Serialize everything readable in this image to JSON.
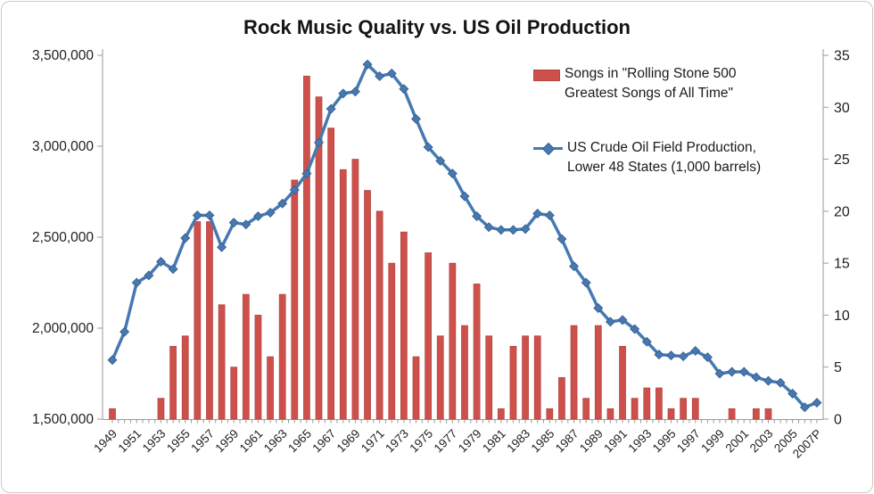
{
  "title": "Rock Music Quality vs. US Oil Production",
  "legend": {
    "items": [
      {
        "line1": "Songs in \"Rolling Stone 500",
        "line2": "Greatest Songs of All Time\"",
        "swatch": "bar-swatch"
      },
      {
        "line1": "US Crude Oil Field Production,",
        "line2": "Lower 48 States (1,000 barrels)",
        "swatch": "line-diamond-swatch"
      }
    ]
  },
  "colors": {
    "bar_fill": "#cd504b",
    "bar_edge": "#b24743",
    "line": "#4679b2",
    "marker_fill": "#4679b2",
    "marker_edge": "#3a6292",
    "axis_line": "#9a9a9a",
    "tick": "#9a9a9a",
    "label_text": "#1f1f1f"
  },
  "chart_data": {
    "type": "combo-bar-line",
    "title": "Rock Music Quality vs. US Oil Production",
    "grid": false,
    "legend_position": "top-right-inside",
    "x": [
      1949,
      1950,
      1951,
      1952,
      1953,
      1954,
      1955,
      1956,
      1957,
      1958,
      1959,
      1960,
      1961,
      1962,
      1963,
      1964,
      1965,
      1966,
      1967,
      1968,
      1969,
      1970,
      1971,
      1972,
      1973,
      1974,
      1975,
      1976,
      1977,
      1978,
      1979,
      1980,
      1981,
      1982,
      1983,
      1984,
      1985,
      1986,
      1987,
      1988,
      1989,
      1990,
      1991,
      1992,
      1993,
      1994,
      1995,
      1996,
      1997,
      1998,
      1999,
      2000,
      2001,
      2002,
      2003,
      2004,
      2005,
      2006,
      2007
    ],
    "x_tick_labels": [
      "1949",
      "1951",
      "1953",
      "1955",
      "1957",
      "1959",
      "1961",
      "1963",
      "1965",
      "1967",
      "1969",
      "1971",
      "1973",
      "1975",
      "1977",
      "1979",
      "1981",
      "1983",
      "1985",
      "1987",
      "1989",
      "1991",
      "1993",
      "1995",
      "1997",
      "1999",
      "2001",
      "2003",
      "2005",
      "2007P"
    ],
    "series": [
      {
        "name": "Songs in \"Rolling Stone 500 Greatest Songs of All Time\"",
        "type": "bar",
        "axis": "right",
        "values": [
          1,
          0,
          0,
          0,
          2,
          7,
          8,
          19,
          19,
          11,
          5,
          12,
          10,
          6,
          12,
          23,
          33,
          31,
          28,
          24,
          25,
          22,
          20,
          15,
          18,
          6,
          16,
          8,
          15,
          9,
          13,
          8,
          1,
          7,
          8,
          8,
          1,
          4,
          9,
          2,
          9,
          1,
          7,
          2,
          3,
          3,
          1,
          2,
          2,
          0,
          0,
          1,
          0,
          1,
          1,
          0,
          0,
          0,
          0
        ]
      },
      {
        "name": "US Crude Oil Field Production, Lower 48 States (1,000 barrels)",
        "type": "line",
        "axis": "left",
        "values": [
          1825000,
          1980000,
          2250000,
          2290000,
          2365000,
          2325000,
          2495000,
          2620000,
          2620000,
          2445000,
          2580000,
          2570000,
          2615000,
          2635000,
          2685000,
          2760000,
          2850000,
          3020000,
          3205000,
          3290000,
          3300000,
          3450000,
          3385000,
          3400000,
          3315000,
          3150000,
          2995000,
          2920000,
          2850000,
          2725000,
          2615000,
          2555000,
          2540000,
          2540000,
          2545000,
          2630000,
          2620000,
          2490000,
          2340000,
          2250000,
          2110000,
          2035000,
          2045000,
          1995000,
          1925000,
          1855000,
          1850000,
          1845000,
          1875000,
          1840000,
          1750000,
          1760000,
          1760000,
          1730000,
          1710000,
          1700000,
          1640000,
          1565000,
          1590000
        ]
      }
    ],
    "left_axis": {
      "min": 1500000,
      "max": 3500000,
      "tick_step": 500000,
      "tick_labels": [
        "1,500,000",
        "2,000,000",
        "2,500,000",
        "3,000,000",
        "3,500,000"
      ]
    },
    "right_axis": {
      "min": 0,
      "max": 35,
      "tick_step": 5,
      "tick_labels": [
        "0",
        "5",
        "10",
        "15",
        "20",
        "25",
        "30",
        "35"
      ]
    }
  }
}
